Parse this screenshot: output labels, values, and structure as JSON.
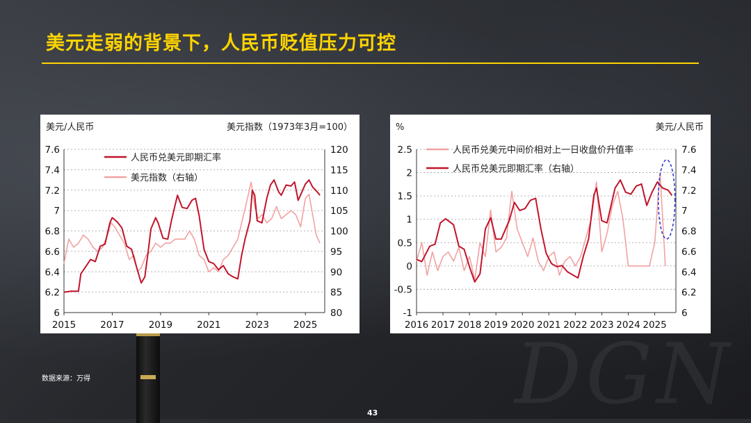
{
  "slide": {
    "title": "美元走弱的背景下，人民币贬值压力可控",
    "source": "数据来源：万得",
    "page_number": "43"
  },
  "colors": {
    "title": "#ffd400",
    "dark_red": "#c0142b",
    "light_pink": "#f2a1a1"
  },
  "chart_data": [
    {
      "type": "line",
      "left_axis_label": "美元/人民币",
      "right_axis_label": "美元指数（1973年3月=100）",
      "x_ticks": [
        "2015",
        "2017",
        "2019",
        "2021",
        "2023",
        "2025"
      ],
      "xlim": [
        2015,
        2025.8
      ],
      "ylim_left": [
        6,
        7.6
      ],
      "ylim_right": [
        80,
        120
      ],
      "yticks_left": [
        "7.6",
        "7.4",
        "7.2",
        "7",
        "6.8",
        "6.6",
        "6.4",
        "6.2",
        "6"
      ],
      "yticks_right": [
        "120",
        "115",
        "110",
        "105",
        "100",
        "95",
        "90",
        "85",
        "80"
      ],
      "series": [
        {
          "name": "人民币兑美元即期汇率",
          "axis": "left",
          "color": "#c0142b",
          "x": [
            2015.0,
            2015.3,
            2015.6,
            2015.7,
            2015.9,
            2016.1,
            2016.3,
            2016.5,
            2016.7,
            2016.9,
            2017.0,
            2017.2,
            2017.4,
            2017.6,
            2017.8,
            2018.0,
            2018.2,
            2018.35,
            2018.5,
            2018.6,
            2018.8,
            2018.9,
            2019.1,
            2019.3,
            2019.45,
            2019.6,
            2019.7,
            2019.9,
            2020.1,
            2020.3,
            2020.45,
            2020.6,
            2020.8,
            2021.0,
            2021.2,
            2021.4,
            2021.6,
            2021.8,
            2022.0,
            2022.2,
            2022.35,
            2022.5,
            2022.7,
            2022.8,
            2022.9,
            2023.0,
            2023.2,
            2023.4,
            2023.55,
            2023.7,
            2023.9,
            2024.0,
            2024.2,
            2024.4,
            2024.55,
            2024.7,
            2024.85,
            2025.0,
            2025.15,
            2025.3,
            2025.5,
            2025.6
          ],
          "y": [
            6.2,
            6.21,
            6.21,
            6.38,
            6.45,
            6.52,
            6.5,
            6.65,
            6.67,
            6.88,
            6.93,
            6.89,
            6.83,
            6.65,
            6.62,
            6.45,
            6.29,
            6.35,
            6.62,
            6.82,
            6.93,
            6.88,
            6.73,
            6.72,
            6.9,
            7.05,
            7.15,
            7.03,
            7.02,
            7.1,
            7.12,
            6.95,
            6.62,
            6.5,
            6.48,
            6.42,
            6.46,
            6.38,
            6.35,
            6.33,
            6.55,
            6.72,
            6.9,
            7.2,
            7.15,
            6.9,
            6.88,
            7.12,
            7.25,
            7.3,
            7.18,
            7.15,
            7.25,
            7.24,
            7.28,
            7.1,
            7.18,
            7.26,
            7.3,
            7.23,
            7.18,
            7.15
          ]
        },
        {
          "name": "美元指数（右轴）",
          "axis": "right",
          "color": "#f2a1a1",
          "x": [
            2015.0,
            2015.2,
            2015.4,
            2015.6,
            2015.8,
            2016.0,
            2016.2,
            2016.4,
            2016.6,
            2016.8,
            2016.95,
            2017.1,
            2017.3,
            2017.5,
            2017.7,
            2017.9,
            2018.05,
            2018.2,
            2018.4,
            2018.6,
            2018.8,
            2019.0,
            2019.2,
            2019.4,
            2019.6,
            2019.8,
            2020.0,
            2020.2,
            2020.4,
            2020.6,
            2020.8,
            2021.0,
            2021.2,
            2021.4,
            2021.6,
            2021.8,
            2022.0,
            2022.2,
            2022.4,
            2022.6,
            2022.75,
            2022.9,
            2023.05,
            2023.2,
            2023.4,
            2023.6,
            2023.8,
            2024.0,
            2024.2,
            2024.4,
            2024.6,
            2024.8,
            2025.0,
            2025.15,
            2025.3,
            2025.45,
            2025.6
          ],
          "y": [
            92,
            98,
            96,
            97,
            99,
            98,
            96,
            95,
            96,
            99,
            102,
            101,
            99,
            97,
            93,
            94,
            90,
            91,
            94,
            95,
            97,
            96,
            97,
            97,
            98,
            98,
            98,
            100,
            98,
            94,
            93,
            90,
            91,
            90,
            93,
            94,
            96,
            98,
            103,
            108,
            112,
            106,
            103,
            104,
            102,
            103,
            106,
            103,
            104,
            105,
            104,
            101,
            108,
            109,
            104,
            99,
            97
          ]
        }
      ]
    },
    {
      "type": "line",
      "left_axis_label": "%",
      "right_axis_label": "美元/人民币",
      "x_ticks": [
        "2016",
        "2017",
        "2018",
        "2019",
        "2020",
        "2021",
        "2022",
        "2023",
        "2024",
        "2025"
      ],
      "xlim": [
        2016,
        2025.8
      ],
      "ylim_left": [
        -1,
        2.5
      ],
      "ylim_right": [
        6,
        7.6
      ],
      "yticks_left": [
        "2.5",
        "2",
        "1.5",
        "1",
        "0.5",
        "0",
        "-0.5",
        "-1"
      ],
      "yticks_right": [
        "7.6",
        "7.4",
        "7.2",
        "7",
        "6.8",
        "6.6",
        "6.4",
        "6.2",
        "6"
      ],
      "series": [
        {
          "name": "人民币兑美元中间价相对上一日收盘价升值率",
          "axis": "left",
          "color": "#f2a1a1",
          "x": [
            2016.0,
            2016.2,
            2016.4,
            2016.6,
            2016.8,
            2017.0,
            2017.2,
            2017.4,
            2017.6,
            2017.8,
            2018.0,
            2018.2,
            2018.4,
            2018.6,
            2018.8,
            2019.0,
            2019.2,
            2019.4,
            2019.6,
            2019.8,
            2020.0,
            2020.2,
            2020.4,
            2020.6,
            2020.8,
            2021.0,
            2021.2,
            2021.4,
            2021.6,
            2021.8,
            2022.0,
            2022.2,
            2022.4,
            2022.6,
            2022.8,
            2023.0,
            2023.2,
            2023.4,
            2023.6,
            2023.8,
            2024.0,
            2024.2,
            2024.4,
            2024.6,
            2024.8,
            2025.0,
            2025.2,
            2025.4
          ],
          "y": [
            0.1,
            0.5,
            -0.2,
            0.3,
            -0.1,
            0.2,
            0.3,
            0.1,
            0.4,
            -0.1,
            0.2,
            -0.3,
            0.5,
            0.2,
            1.2,
            0.3,
            0.4,
            0.6,
            1.6,
            0.8,
            0.5,
            0.2,
            0.6,
            0.1,
            -0.1,
            0.2,
            0.3,
            -0.2,
            0.1,
            0.2,
            0.0,
            0.2,
            0.6,
            1.0,
            1.8,
            0.3,
            0.7,
            1.3,
            1.6,
            1.0,
            0.0,
            0.0,
            0.0,
            0.0,
            0.0,
            0.5,
            2.0,
            0.0
          ]
        },
        {
          "name": "人民币兑美元即期汇率（右轴）",
          "axis": "right",
          "color": "#c0142b",
          "x": [
            2016.0,
            2016.2,
            2016.5,
            2016.7,
            2016.9,
            2017.1,
            2017.4,
            2017.6,
            2017.8,
            2018.0,
            2018.2,
            2018.4,
            2018.6,
            2018.8,
            2019.0,
            2019.2,
            2019.5,
            2019.7,
            2019.9,
            2020.1,
            2020.3,
            2020.5,
            2020.7,
            2020.9,
            2021.1,
            2021.3,
            2021.5,
            2021.7,
            2021.9,
            2022.1,
            2022.3,
            2022.5,
            2022.7,
            2022.8,
            2023.0,
            2023.2,
            2023.5,
            2023.7,
            2023.9,
            2024.1,
            2024.3,
            2024.5,
            2024.7,
            2024.9,
            2025.1,
            2025.3,
            2025.5,
            2025.65
          ],
          "y": [
            6.52,
            6.5,
            6.65,
            6.67,
            6.88,
            6.92,
            6.86,
            6.65,
            6.62,
            6.45,
            6.3,
            6.38,
            6.82,
            6.93,
            6.72,
            6.72,
            6.9,
            7.08,
            7.0,
            7.02,
            7.1,
            7.12,
            6.82,
            6.58,
            6.48,
            6.45,
            6.46,
            6.4,
            6.37,
            6.34,
            6.55,
            6.72,
            7.15,
            7.22,
            6.9,
            6.88,
            7.22,
            7.3,
            7.18,
            7.16,
            7.24,
            7.26,
            7.05,
            7.18,
            7.28,
            7.22,
            7.2,
            7.15
          ]
        }
      ]
    }
  ]
}
